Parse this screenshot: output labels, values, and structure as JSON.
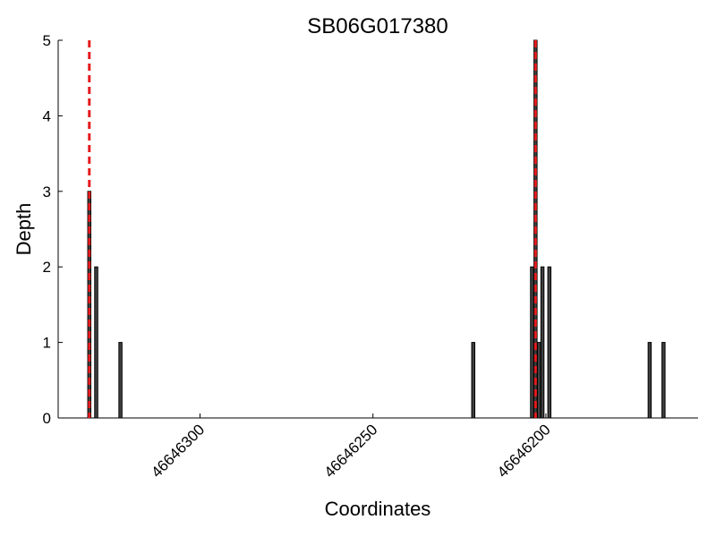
{
  "chart_data": {
    "type": "bar",
    "title": "SB06G017380",
    "xlabel": "Coordinates",
    "ylabel": "Depth",
    "x": [
      46646332,
      46646330,
      46646323,
      46646221,
      46646204,
      46646203,
      46646202,
      46646201,
      46646199,
      46646170,
      46646166
    ],
    "values": [
      3,
      2,
      1,
      1,
      2,
      5,
      1,
      2,
      2,
      1,
      1
    ],
    "color": "#404040",
    "markers": [
      46646332,
      46646203
    ],
    "marker_color": "#e41a1c",
    "xlim": [
      46646341,
      46646156
    ],
    "xticks": [
      46646300,
      46646250,
      46646200
    ],
    "ylim": [
      0,
      5
    ],
    "yticks": [
      0,
      1,
      2,
      3,
      4,
      5
    ]
  }
}
